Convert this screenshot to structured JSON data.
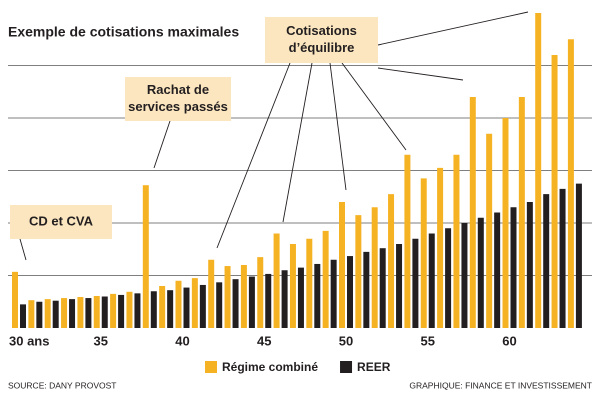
{
  "chart_data": {
    "type": "bar",
    "title": "Exemple de cotisations maximales",
    "categories": [
      "30 ans",
      null,
      null,
      null,
      null,
      "35",
      null,
      null,
      null,
      null,
      "40",
      null,
      null,
      null,
      null,
      "45",
      null,
      null,
      null,
      null,
      "50",
      null,
      null,
      null,
      null,
      "55",
      null,
      null,
      null,
      null,
      "60",
      null,
      null,
      null,
      null
    ],
    "series": [
      {
        "name": "Régime combiné",
        "color": "#f5b324",
        "values": [
          1.07,
          0.53,
          0.55,
          0.57,
          0.59,
          0.61,
          0.65,
          0.69,
          2.72,
          0.8,
          0.9,
          0.95,
          1.3,
          1.18,
          1.2,
          1.35,
          1.8,
          1.6,
          1.7,
          1.85,
          2.4,
          2.15,
          2.3,
          2.55,
          3.3,
          2.85,
          3.05,
          3.3,
          4.4,
          3.7,
          4.0,
          4.4,
          6.0,
          5.2,
          5.5
        ]
      },
      {
        "name": "REER",
        "color": "#231f20",
        "values": [
          0.45,
          0.5,
          0.52,
          0.55,
          0.57,
          0.6,
          0.63,
          0.66,
          0.7,
          0.72,
          0.77,
          0.82,
          0.87,
          0.93,
          0.98,
          1.03,
          1.1,
          1.15,
          1.22,
          1.3,
          1.37,
          1.45,
          1.52,
          1.6,
          1.7,
          1.8,
          1.9,
          2.0,
          2.1,
          2.2,
          2.3,
          2.4,
          2.55,
          2.65,
          2.75
        ]
      }
    ],
    "ylim": [
      0,
      6
    ],
    "yticks": [
      1,
      2,
      3,
      4,
      5
    ],
    "grid": true,
    "legend": "bottom",
    "annotations": [
      {
        "lines": [
          "CD et CVA"
        ]
      },
      {
        "lines": [
          "Rachat de",
          "services passés"
        ]
      },
      {
        "lines": [
          "Cotisations",
          "d’équilibre"
        ]
      }
    ],
    "source": "SOURCE: DANY PROVOST",
    "credit": "GRAPHIQUE: FINANCE ET INVESTISSEMENT"
  }
}
